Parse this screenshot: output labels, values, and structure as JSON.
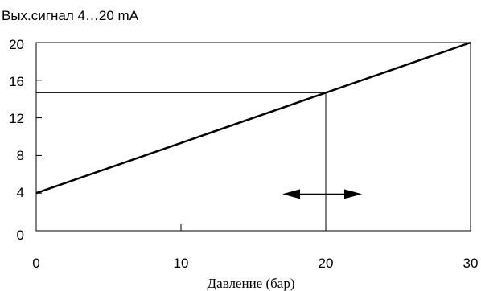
{
  "chart_data": {
    "type": "line",
    "title": "",
    "ylabel": "Вых.сигнал 4…20 mA",
    "xlabel": "Давление (бар)",
    "xlim": [
      0,
      30
    ],
    "ylim": [
      0,
      20
    ],
    "x_ticks": [
      "0",
      "10",
      "20",
      "30"
    ],
    "y_ticks": [
      "0",
      "4",
      "8",
      "12",
      "16",
      "20"
    ],
    "x_tick_values": [
      0,
      10,
      20,
      30
    ],
    "y_tick_values": [
      0,
      4,
      8,
      12,
      16,
      20
    ],
    "grid": false,
    "series": [
      {
        "x": [
          0,
          30
        ],
        "y": [
          4,
          20
        ]
      }
    ],
    "annotations": {
      "reference_point": {
        "x": 20,
        "y": 14.67
      },
      "double_arrow": {
        "x_from": 17,
        "x_to": 22.5,
        "y": 3.9
      }
    },
    "colors": {
      "line": "#000000",
      "axes": "#000000"
    }
  }
}
